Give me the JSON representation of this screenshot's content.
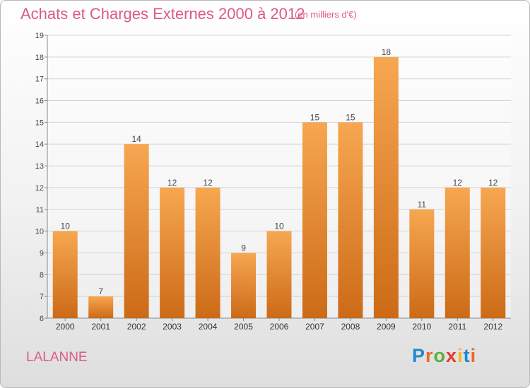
{
  "header": {
    "title": "Achats et Charges Externes 2000 à 2012",
    "subtitle": "(en milliers d'€)"
  },
  "footer": {
    "commune": "LALANNE",
    "logo": "Proxiti"
  },
  "colors": {
    "accent": "#dc5a86",
    "bar_top": "#f7a751",
    "bar_bottom": "#cc6a17",
    "logo_letters": [
      "#1f8ad0",
      "#e96a26",
      "#5cae3a",
      "#e63a2f",
      "#f2b51c",
      "#1f8ad0",
      "#e96a26"
    ]
  },
  "chart_data": {
    "type": "bar",
    "categories": [
      "2000",
      "2001",
      "2002",
      "2003",
      "2004",
      "2005",
      "2006",
      "2007",
      "2008",
      "2009",
      "2010",
      "2011",
      "2012"
    ],
    "values": [
      10,
      7,
      14,
      12,
      12,
      9,
      10,
      15,
      15,
      18,
      11,
      12,
      12
    ],
    "title": "Achats et Charges Externes 2000 à 2012",
    "subtitle": "(en milliers d'€)",
    "ylim": [
      6,
      19
    ],
    "yticks": [
      6,
      7,
      8,
      9,
      10,
      11,
      12,
      13,
      14,
      15,
      16,
      17,
      18,
      19
    ],
    "grid": true,
    "legend": "none",
    "data_labels": true
  }
}
